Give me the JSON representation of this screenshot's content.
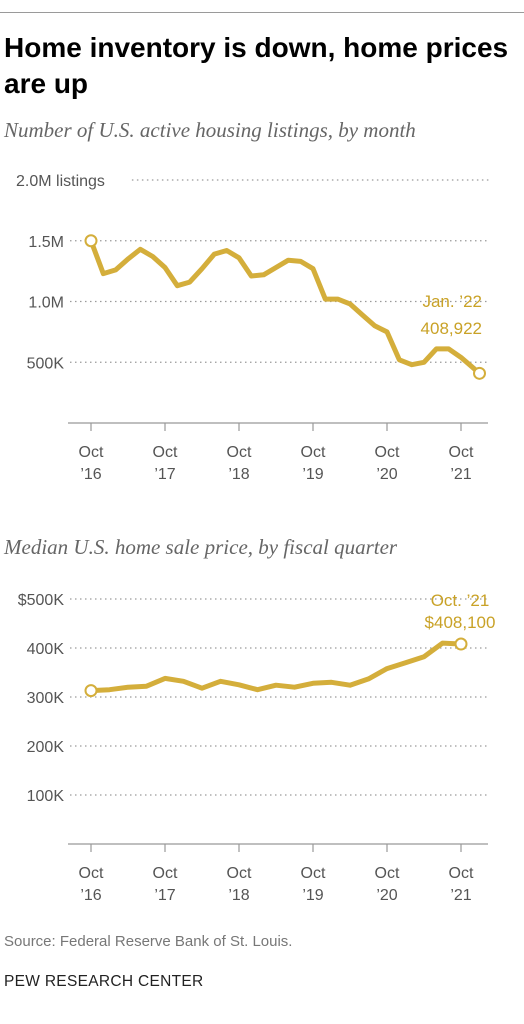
{
  "title": "Home inventory is down, home prices are up",
  "source": "Source: Federal Reserve Bank of St. Louis.",
  "brand": "PEW RESEARCH CENTER",
  "colors": {
    "line": "#d4ae3b",
    "label": "#c9a227",
    "grid": "#9a9a9a",
    "axis": "#999999",
    "text": "#555555"
  },
  "chart_data": [
    {
      "type": "line",
      "title": "Number of U.S. active housing listings, by month",
      "xlabel": "",
      "ylabel": "",
      "ylim": [
        0,
        2000000
      ],
      "y_ticks": [
        {
          "value": 500000,
          "label": "500K"
        },
        {
          "value": 1000000,
          "label": "1.0M"
        },
        {
          "value": 1500000,
          "label": "1.5M"
        },
        {
          "value": 2000000,
          "label": "2.0M listings"
        }
      ],
      "x_ticks": [
        {
          "label": "Oct",
          "sub": "’16",
          "date": "2016-10"
        },
        {
          "label": "Oct",
          "sub": "’17",
          "date": "2017-10"
        },
        {
          "label": "Oct",
          "sub": "’18",
          "date": "2018-10"
        },
        {
          "label": "Oct",
          "sub": "’19",
          "date": "2019-10"
        },
        {
          "label": "Oct",
          "sub": "’20",
          "date": "2020-10"
        },
        {
          "label": "Oct",
          "sub": "’21",
          "date": "2021-10"
        }
      ],
      "grid": true,
      "series": [
        {
          "points": [
            {
              "x": "2016-10",
              "y": 1500000
            },
            {
              "x": "2016-12",
              "y": 1230000
            },
            {
              "x": "2017-02",
              "y": 1260000
            },
            {
              "x": "2017-04",
              "y": 1350000
            },
            {
              "x": "2017-06",
              "y": 1430000
            },
            {
              "x": "2017-08",
              "y": 1370000
            },
            {
              "x": "2017-10",
              "y": 1280000
            },
            {
              "x": "2017-12",
              "y": 1130000
            },
            {
              "x": "2018-02",
              "y": 1160000
            },
            {
              "x": "2018-04",
              "y": 1270000
            },
            {
              "x": "2018-06",
              "y": 1390000
            },
            {
              "x": "2018-08",
              "y": 1420000
            },
            {
              "x": "2018-10",
              "y": 1360000
            },
            {
              "x": "2018-12",
              "y": 1210000
            },
            {
              "x": "2019-02",
              "y": 1220000
            },
            {
              "x": "2019-04",
              "y": 1280000
            },
            {
              "x": "2019-06",
              "y": 1340000
            },
            {
              "x": "2019-08",
              "y": 1330000
            },
            {
              "x": "2019-10",
              "y": 1270000
            },
            {
              "x": "2019-12",
              "y": 1020000
            },
            {
              "x": "2020-02",
              "y": 1020000
            },
            {
              "x": "2020-04",
              "y": 980000
            },
            {
              "x": "2020-06",
              "y": 890000
            },
            {
              "x": "2020-08",
              "y": 800000
            },
            {
              "x": "2020-10",
              "y": 750000
            },
            {
              "x": "2020-12",
              "y": 520000
            },
            {
              "x": "2021-02",
              "y": 480000
            },
            {
              "x": "2021-04",
              "y": 500000
            },
            {
              "x": "2021-06",
              "y": 610000
            },
            {
              "x": "2021-08",
              "y": 610000
            },
            {
              "x": "2021-10",
              "y": 540000
            },
            {
              "x": "2022-01",
              "y": 408922
            }
          ]
        }
      ],
      "start_marker": {
        "x": "2016-10",
        "y": 1500000
      },
      "end_marker": {
        "x": "2022-01",
        "y": 408922
      },
      "annotation": {
        "line1": "Jan. ’22",
        "line2": "408,922"
      }
    },
    {
      "type": "line",
      "title": "Median U.S. home sale price, by fiscal quarter",
      "xlabel": "",
      "ylabel": "",
      "ylim": [
        0,
        500000
      ],
      "y_ticks": [
        {
          "value": 100000,
          "label": "100K"
        },
        {
          "value": 200000,
          "label": "200K"
        },
        {
          "value": 300000,
          "label": "300K"
        },
        {
          "value": 400000,
          "label": "400K"
        },
        {
          "value": 500000,
          "label": "$500K"
        }
      ],
      "x_ticks": [
        {
          "label": "Oct",
          "sub": "’16",
          "date": "2016-10"
        },
        {
          "label": "Oct",
          "sub": "’17",
          "date": "2017-10"
        },
        {
          "label": "Oct",
          "sub": "’18",
          "date": "2018-10"
        },
        {
          "label": "Oct",
          "sub": "’19",
          "date": "2019-10"
        },
        {
          "label": "Oct",
          "sub": "’20",
          "date": "2020-10"
        },
        {
          "label": "Oct",
          "sub": "’21",
          "date": "2021-10"
        }
      ],
      "grid": true,
      "series": [
        {
          "points": [
            {
              "x": "2016-10",
              "y": 313000
            },
            {
              "x": "2017-01",
              "y": 315000
            },
            {
              "x": "2017-04",
              "y": 320000
            },
            {
              "x": "2017-07",
              "y": 322000
            },
            {
              "x": "2017-10",
              "y": 338000
            },
            {
              "x": "2018-01",
              "y": 332000
            },
            {
              "x": "2018-04",
              "y": 318000
            },
            {
              "x": "2018-07",
              "y": 332000
            },
            {
              "x": "2018-10",
              "y": 325000
            },
            {
              "x": "2019-01",
              "y": 315000
            },
            {
              "x": "2019-04",
              "y": 324000
            },
            {
              "x": "2019-07",
              "y": 320000
            },
            {
              "x": "2019-10",
              "y": 328000
            },
            {
              "x": "2020-01",
              "y": 330000
            },
            {
              "x": "2020-04",
              "y": 324000
            },
            {
              "x": "2020-07",
              "y": 337000
            },
            {
              "x": "2020-10",
              "y": 358000
            },
            {
              "x": "2021-01",
              "y": 370000
            },
            {
              "x": "2021-04",
              "y": 382000
            },
            {
              "x": "2021-07",
              "y": 410000
            },
            {
              "x": "2021-10",
              "y": 408100
            }
          ]
        }
      ],
      "start_marker": {
        "x": "2016-10",
        "y": 313000
      },
      "end_marker": {
        "x": "2021-10",
        "y": 408100
      },
      "annotation": {
        "line1": "Oct. ’21",
        "line2": "$408,100"
      }
    }
  ]
}
